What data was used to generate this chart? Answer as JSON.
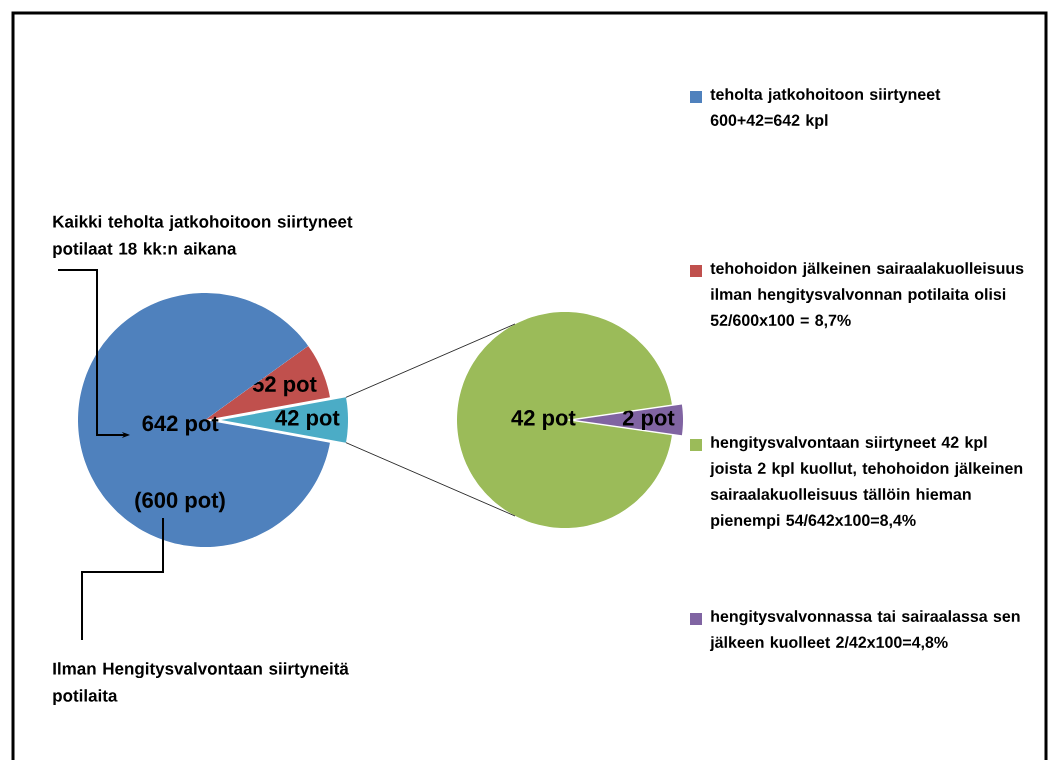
{
  "chart_data": [
    {
      "type": "pie",
      "categories": [
        "teholta jatkohoitoon siirtyneet 600+42=642 kpl",
        "tehohoidon jälkeinen sairaalakuolleisuus ilman hengitysvalvonnan potilaita olisi 52/600x100 = 8,7%",
        null
      ],
      "values": [
        642,
        52,
        42
      ],
      "colors": [
        "#4f81bd",
        "#c0504d",
        "#4bacc6"
      ],
      "value_labels": [
        "642 pot",
        "52 pot",
        "42 pot"
      ],
      "legend": "right",
      "annotations": [
        "Kaikki teholta jatkohoitoon siirtyneet potilaat 18 kk:n aikana",
        "(600 pot)",
        "Ilman Hengitysvalvontaan siirtyneitä potilaita"
      ]
    },
    {
      "type": "pie",
      "categories": [
        "hengitysvalvontaan siirtyneet 42 kpl joista 2 kpl kuollut, tehohoidon jälkeinen sairaalakuolleisuus tällöin hieman pienempi 54/642x100=8,4%",
        "hengitysvalvonnassa tai sairaalassa sen jälkeen kuolleet 2/42x100=4,8%"
      ],
      "values": [
        42,
        2
      ],
      "colors": [
        "#9bbb59",
        "#8064a2"
      ],
      "value_labels": [
        "42 pot",
        "2 pot"
      ],
      "legend": "right"
    }
  ]
}
